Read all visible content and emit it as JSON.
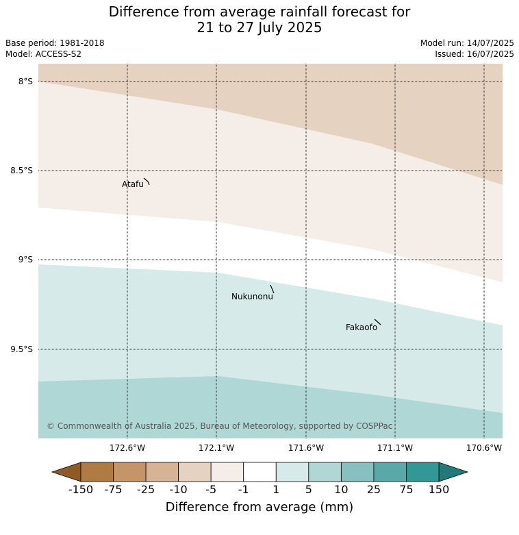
{
  "header": {
    "title_line1": "Difference from average rainfall forecast for",
    "title_line2": "21 to 27 July 2025",
    "base_period": "Base period: 1981-2018",
    "model": "Model: ACCESS-S2",
    "model_run": "Model run: 14/07/2025",
    "issued": "Issued: 16/07/2025"
  },
  "map": {
    "lat_labels": [
      "8°S",
      "8.5°S",
      "9°S",
      "9.5°S"
    ],
    "lon_labels": [
      "172.6°W",
      "172.1°W",
      "171.6°W",
      "171.1°W",
      "170.6°W"
    ],
    "places": [
      "Atafu",
      "Nukunonu",
      "Fakaofo"
    ],
    "copyright": "© Commonwealth of Australia 2025, Bureau of Meteorology, supported by COSPPac"
  },
  "colorbar": {
    "ticks": [
      "-150",
      "-75",
      "-25",
      "-10",
      "-5",
      "-1",
      "1",
      "5",
      "10",
      "25",
      "75",
      "150"
    ],
    "colors": {
      "below_min": "#8f5a24",
      "bins": [
        "#b07a43",
        "#c49566",
        "#d5b394",
        "#e6d2c0",
        "#f5ede7",
        "#ffffff",
        "#d5eae9",
        "#aed7d6",
        "#86c1bf",
        "#5aa9a8",
        "#329896"
      ],
      "above_max": "#237878"
    },
    "title": "Difference from average (mm)"
  }
}
